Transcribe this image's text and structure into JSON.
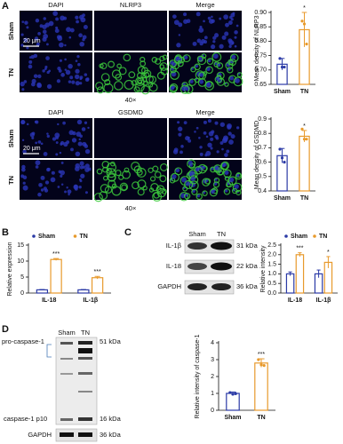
{
  "figure": {
    "panel_labels": [
      "A",
      "B",
      "C",
      "D"
    ],
    "a_images_1": {
      "columns": [
        "DAPI",
        "NLRP3",
        "Merge"
      ]
    },
    "a_images_2": {
      "columns": [
        "DAPI",
        "GSDMD",
        "Merge"
      ]
    },
    "a_rows": [
      "Sham",
      "TN"
    ],
    "scale_bar": "20 μm",
    "magnification": "40×",
    "c_blot": {
      "lanes": [
        "Sham",
        "TN"
      ],
      "bands": [
        {
          "name": "IL-1β",
          "size": "31 kDa"
        },
        {
          "name": "IL-18",
          "size": "22 kDa"
        },
        {
          "name": "GAPDH",
          "size": "36 kDa"
        }
      ]
    },
    "d_blot": {
      "lanes": [
        "Sham",
        "TN"
      ],
      "bands": [
        {
          "name": "pro-caspase-1",
          "size": "51 kDa"
        },
        {
          "name": "caspase-1 p10",
          "size": "16 kDa"
        },
        {
          "name": "GAPDH",
          "size": "36 kDa"
        }
      ]
    }
  },
  "chart_data": [
    {
      "type": "bar",
      "y_label": "Mean density of NLRP3",
      "categories": [
        "Sham",
        "TN"
      ],
      "values": [
        0.72,
        0.84
      ],
      "errors": [
        0.02,
        0.06
      ],
      "points": [
        [
          0.74,
          0.71,
          0.71
        ],
        [
          0.87,
          0.86,
          0.79
        ]
      ],
      "significance": [
        null,
        "*"
      ],
      "colors": [
        "#2b3aa6",
        "#e89a2c"
      ],
      "ylim": [
        0.65,
        0.9
      ],
      "yticks": [
        0.65,
        {
          "value": 0.7,
          "label": "0.70"
        },
        0.75,
        {
          "value": 0.8,
          "label": "0.80"
        },
        0.85,
        {
          "value": 0.9,
          "label": "0.90"
        }
      ]
    },
    {
      "type": "bar",
      "y_label": "Mean density of GSDMD",
      "categories": [
        "Sham",
        "TN"
      ],
      "values": [
        0.645,
        0.78
      ],
      "errors": [
        0.05,
        0.04
      ],
      "points": [
        [
          0.69,
          0.63,
          0.6
        ],
        [
          0.83,
          0.76,
          0.76
        ]
      ],
      "significance": [
        null,
        "*"
      ],
      "colors": [
        "#2b3aa6",
        "#e89a2c"
      ],
      "ylim": [
        0.4,
        0.9
      ],
      "yticks": [
        0.4,
        0.5,
        0.6,
        0.7,
        0.8,
        0.9
      ]
    },
    {
      "type": "grouped-bar",
      "y_label": "Relative expression",
      "categories": [
        "IL-18",
        "IL-1β"
      ],
      "series": [
        {
          "name": "Sham",
          "color": "#2b3aa6",
          "values": [
            1.0,
            1.0
          ],
          "errors": [
            0.1,
            0.1
          ]
        },
        {
          "name": "TN",
          "color": "#e89a2c",
          "values": [
            10.5,
            4.8
          ],
          "errors": [
            0.3,
            0.4
          ],
          "significance": [
            "***",
            "***"
          ]
        }
      ],
      "ylim": [
        0,
        15
      ],
      "yticks": [
        0,
        5,
        10,
        15
      ]
    },
    {
      "type": "grouped-bar",
      "y_label": "Relative intensity",
      "categories": [
        "IL-18",
        "IL-1β"
      ],
      "series": [
        {
          "name": "Sham",
          "color": "#2b3aa6",
          "values": [
            1.0,
            1.0
          ],
          "errors": [
            0.1,
            0.2
          ]
        },
        {
          "name": "TN",
          "color": "#e89a2c",
          "values": [
            2.0,
            1.6
          ],
          "errors": [
            0.1,
            0.3
          ],
          "significance": [
            "***",
            "*"
          ]
        }
      ],
      "ylim": [
        0,
        2.5
      ],
      "yticks": [
        {
          "value": 0,
          "label": "0.0"
        },
        0.5,
        {
          "value": 1,
          "label": "1.0"
        },
        1.5,
        {
          "value": 2,
          "label": "2.0"
        },
        2.5
      ]
    },
    {
      "type": "bar",
      "y_label": "Relative intensity of caspase-1",
      "categories": [
        "Sham",
        "TN"
      ],
      "values": [
        1.0,
        2.8
      ],
      "errors": [
        0.08,
        0.25
      ],
      "points": [
        [
          1.05,
          0.95,
          0.98
        ],
        [
          3.0,
          2.7,
          2.65
        ]
      ],
      "significance": [
        null,
        "***"
      ],
      "colors": [
        "#2b3aa6",
        "#e89a2c"
      ],
      "ylim": [
        0,
        4
      ],
      "yticks": [
        0,
        1,
        2,
        3,
        4
      ]
    }
  ]
}
